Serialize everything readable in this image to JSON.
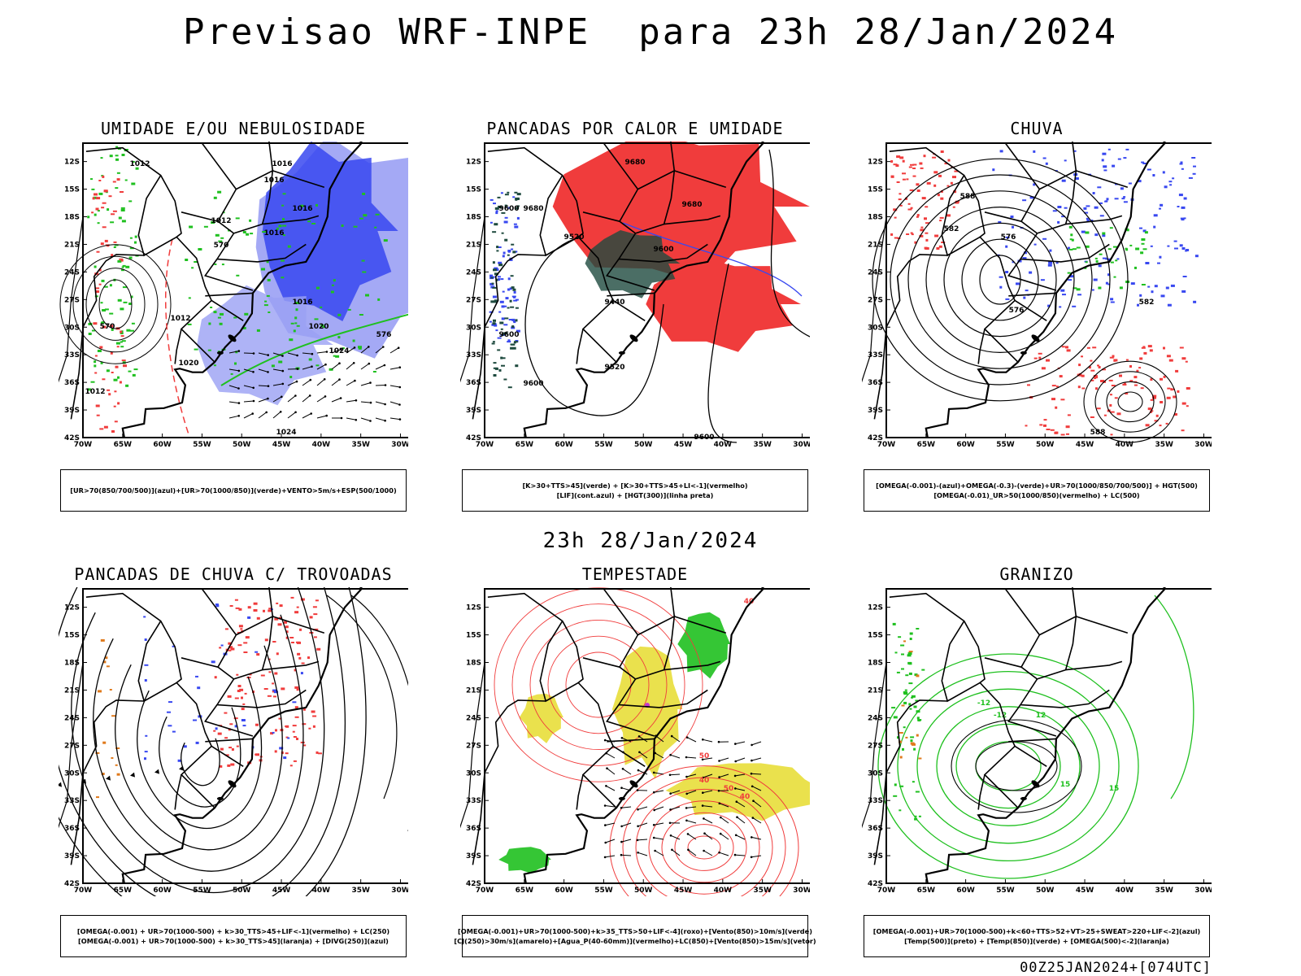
{
  "title": "Previsao WRF-INPE  para 23h 28/Jan/2024",
  "mid_time": "23h 28/Jan/2024",
  "footer_code": "00Z25JAN2024+[074UTC]",
  "axes": {
    "lat_labels": [
      "12S",
      "15S",
      "18S",
      "21S",
      "24S",
      "27S",
      "30S",
      "33S",
      "36S",
      "39S",
      "42S"
    ],
    "lon_labels": [
      "70W",
      "65W",
      "60W",
      "55W",
      "50W",
      "45W",
      "40W",
      "35W",
      "30W"
    ]
  },
  "colors": {
    "red": "#f03c3c",
    "green": "#1fc01f",
    "blue": "#3848f0",
    "lightblue": "#9aa0f4",
    "yellow": "#e6dc2e",
    "darkgreen": "#1e4a3e",
    "orange": "#e07a1c",
    "purple": "#c238d0",
    "black": "#000000"
  },
  "panels": [
    {
      "title": "UMIDADE E/OU NEBULOSIDADE",
      "legend": [
        "[UR>70(850/700/500)](azul)+[UR>70(1000/850)](verde)+VENTO>5m/s+ESP(500/1000)"
      ],
      "contour_labels": [
        "1012",
        "1016",
        "1016",
        "1016",
        "1012",
        "1016",
        "1016",
        "1012",
        "1020",
        "1024",
        "1020",
        "1024",
        "1012",
        "570",
        "570",
        "576"
      ]
    },
    {
      "title": "PANCADAS POR CALOR E UMIDADE",
      "legend": [
        "[K>30+TTS>45](verde) + [K>30+TTS>45+LI<-1](vermelho)",
        "[LIF](cont.azul) + [HGT(300)](linha preta)"
      ],
      "contour_labels": [
        "9680",
        "9680",
        "9600",
        "9680",
        "9520",
        "9600",
        "9440",
        "9600",
        "9520",
        "9600",
        "9600"
      ]
    },
    {
      "title": "CHUVA",
      "legend": [
        "[OMEGA(-0.001)-(azul)+OMEGA(-0.3)-(verde)+UR>70(1000/850/700/500)] + HGT(500)",
        "[OMEGA(-0.01)_UR>50(1000/850)(vermelho) + LC(500)"
      ],
      "contour_labels": [
        "588",
        "582",
        "576",
        "576",
        "582",
        "588"
      ]
    },
    {
      "title": "PANCADAS DE CHUVA C/ TROVOADAS",
      "legend": [
        "[OMEGA(-0.001) + UR>70(1000-500) + k>30_TTS>45+LIF<-1](vermelho) + LC(250)",
        "[OMEGA(-0.001) + UR>70(1000-500) + k>30_TTS>45](laranja) + [DIVG(250)](azul)"
      ],
      "contour_labels": []
    },
    {
      "title": "TEMPESTADE",
      "legend": [
        "[OMEGA(-0.001)+UR>70(1000-500)+k>35_TTS>50+LIF<-4](roxo)+[Vento(850)>10m/s](verde)",
        "[CJ(250)>30m/s](amarelo)+[Agua_P(40-60mm)](vermelho)+LC(850)+[Vento(850)>15m/s](vetor)"
      ],
      "contour_labels": [
        "40",
        "40",
        "50",
        "50",
        "40"
      ]
    },
    {
      "title": "GRANIZO",
      "legend": [
        "[OMEGA(-0.001)+UR>70(1000-500)+k<60+TTS>52+VT>25+SWEAT>220+LIF<-2](azul)",
        "[Temp(500)](preto) + [Temp(850)](verde) + [OMEGA(500)<-2](laranja)"
      ],
      "contour_labels": [
        "-12",
        "-12",
        "15",
        "15",
        "12"
      ]
    }
  ]
}
